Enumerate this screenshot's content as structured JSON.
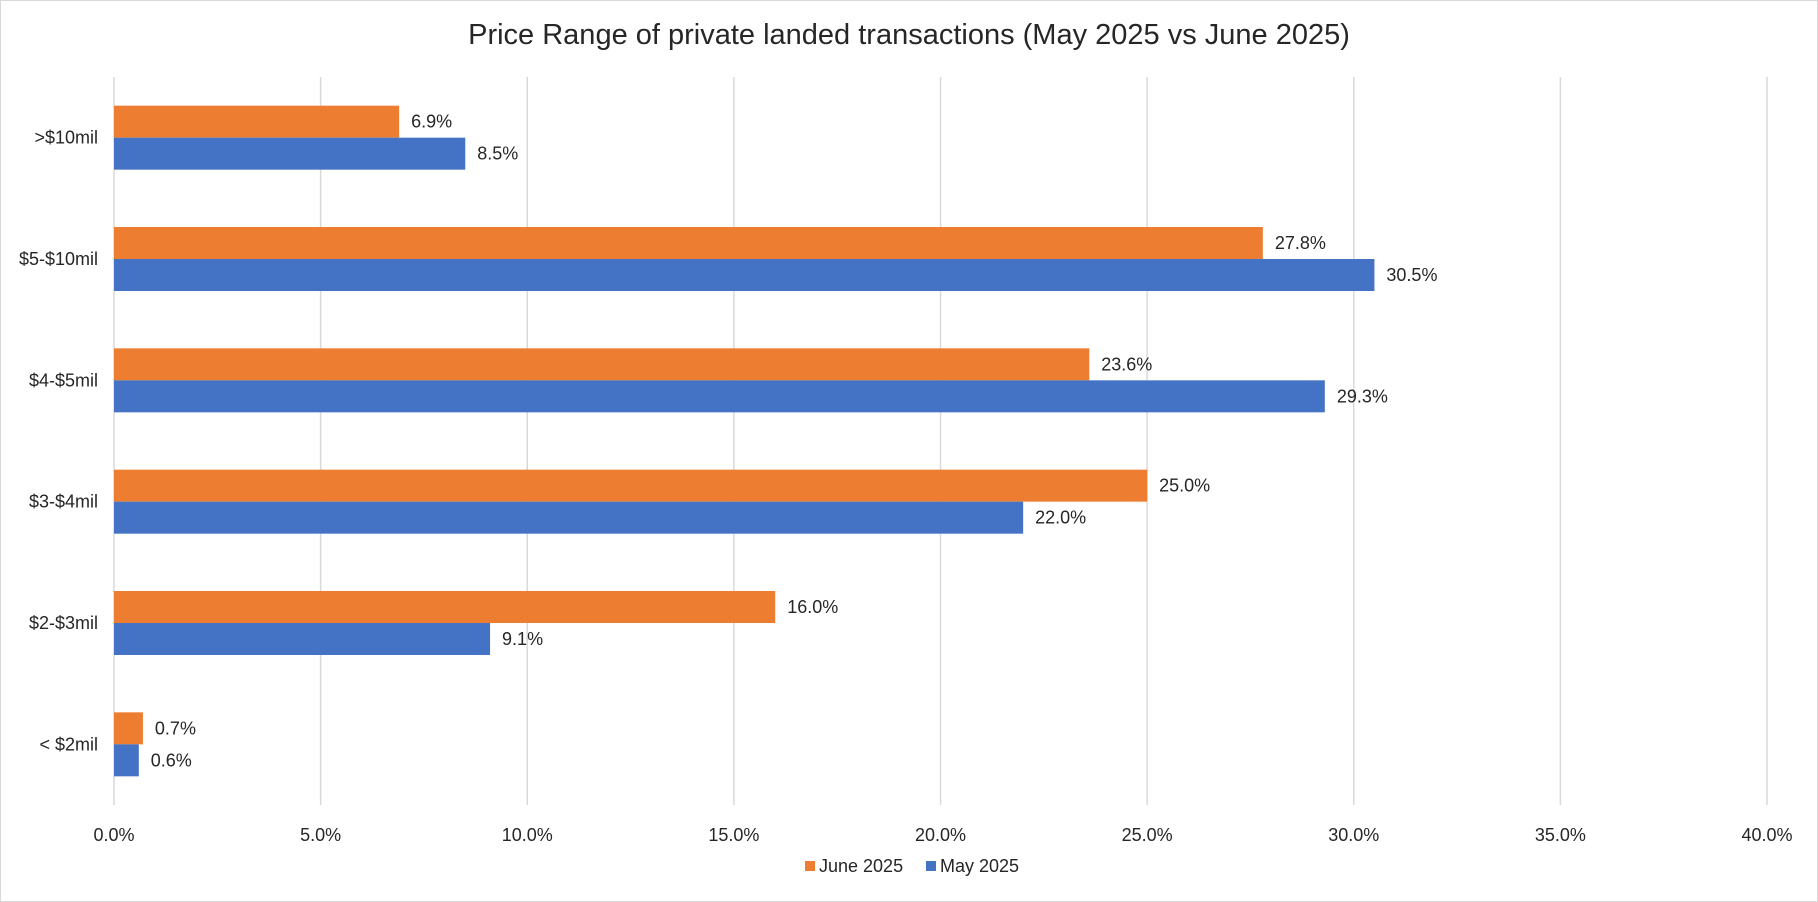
{
  "chart_data": {
    "type": "bar",
    "orientation": "horizontal",
    "title": "Price Range of private landed transactions (May 2025 vs June 2025)",
    "categories": [
      ">$10mil",
      "$5-$10mil",
      "$4-$5mil",
      "$3-$4mil",
      "$2-$3mil",
      "< $2mil"
    ],
    "series": [
      {
        "name": "June 2025",
        "color": "#ED7D31",
        "values": [
          6.9,
          27.8,
          23.6,
          25.0,
          16.0,
          0.7
        ]
      },
      {
        "name": "May 2025",
        "color": "#4472C4",
        "values": [
          8.5,
          30.5,
          29.3,
          22.0,
          9.1,
          0.6
        ]
      }
    ],
    "xlim": [
      0,
      40
    ],
    "x_ticks": [
      0,
      5,
      10,
      15,
      20,
      25,
      30,
      35,
      40
    ],
    "x_tick_labels": [
      "0.0%",
      "5.0%",
      "10.0%",
      "15.0%",
      "20.0%",
      "25.0%",
      "30.0%",
      "35.0%",
      "40.0%"
    ],
    "data_labels": [
      [
        "6.9%",
        "27.8%",
        "23.6%",
        "25.0%",
        "16.0%",
        "0.7%"
      ],
      [
        "8.5%",
        "30.5%",
        "29.3%",
        "22.0%",
        "9.1%",
        "0.6%"
      ]
    ],
    "xlabel": "",
    "ylabel": "",
    "grid": "vertical",
    "legend": "bottom"
  }
}
